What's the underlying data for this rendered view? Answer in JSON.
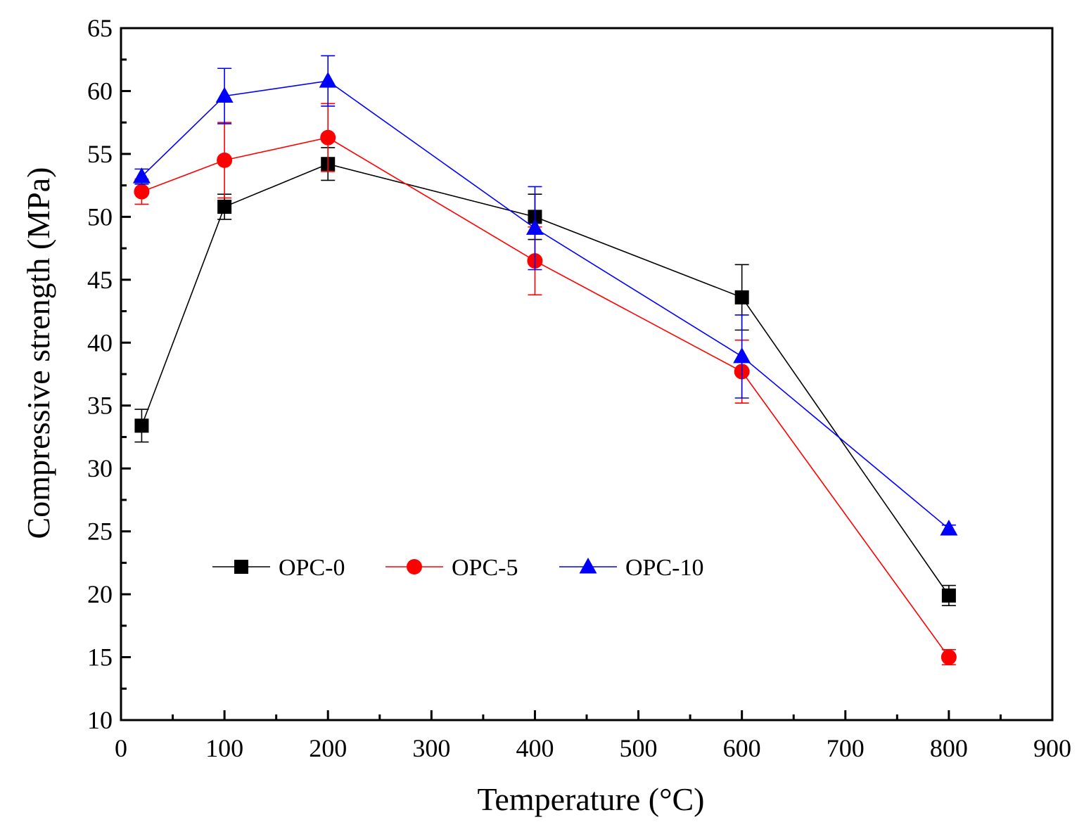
{
  "chart_data": {
    "type": "line",
    "title": "",
    "xlabel": "Temperature (°C)",
    "ylabel": "Compressive strength (MPa)",
    "xlim": [
      0,
      900
    ],
    "ylim": [
      10,
      65
    ],
    "xticks": [
      0,
      100,
      200,
      300,
      400,
      500,
      600,
      700,
      800,
      900
    ],
    "yticks": [
      10,
      15,
      20,
      25,
      30,
      35,
      40,
      45,
      50,
      55,
      60,
      65
    ],
    "grid": false,
    "legend_position": "inside-lower-left",
    "x": [
      20,
      100,
      200,
      400,
      600,
      800
    ],
    "series": [
      {
        "name": "OPC-0",
        "color": "#000000",
        "marker": "square",
        "values": [
          33.4,
          50.8,
          54.2,
          50.0,
          43.6,
          19.9
        ],
        "errors": [
          1.3,
          1.0,
          1.3,
          1.8,
          2.6,
          0.8
        ]
      },
      {
        "name": "OPC-5",
        "color": "#ff0000",
        "marker": "circle",
        "values": [
          52.0,
          54.5,
          56.3,
          46.5,
          37.7,
          15.0
        ],
        "errors": [
          1.0,
          3.0,
          2.7,
          2.7,
          2.5,
          0.6
        ]
      },
      {
        "name": "OPC-10",
        "color": "#0000ff",
        "marker": "triangle",
        "values": [
          53.2,
          59.6,
          60.8,
          49.1,
          38.9,
          25.2
        ],
        "errors": [
          0.6,
          2.2,
          2.0,
          3.3,
          3.3,
          0.3
        ]
      }
    ]
  }
}
